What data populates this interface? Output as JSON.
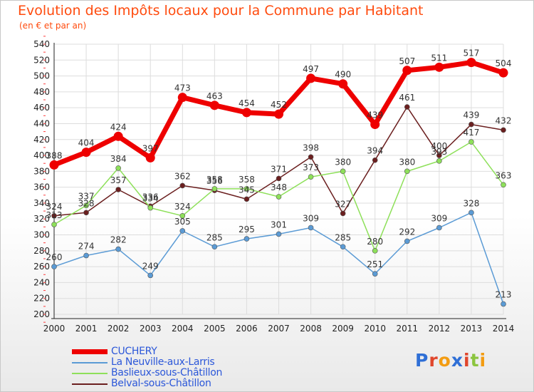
{
  "header": {
    "title": "Evolution des Impôts locaux pour la Commune par Habitant",
    "subtitle": "(en € et par an)"
  },
  "colors": {
    "title": "#ff4b0e",
    "legend_text": "#2b57d9",
    "grid": "#dddddd",
    "tick_marks": "#ff3b3b"
  },
  "chart_data": {
    "type": "line",
    "title": "Evolution des Impôts locaux pour la Commune par Habitant",
    "subtitle": "(en € et par an)",
    "x": [
      "2000",
      "2001",
      "2002",
      "2003",
      "2004",
      "2005",
      "2006",
      "2007",
      "2008",
      "2009",
      "2010",
      "2011",
      "2012",
      "2013",
      "2014"
    ],
    "yticks": [
      200,
      220,
      240,
      260,
      280,
      300,
      320,
      340,
      360,
      380,
      400,
      420,
      440,
      460,
      480,
      500,
      520,
      540
    ],
    "ylim": [
      200,
      540
    ],
    "grid": true,
    "legend_position": "bottom-left",
    "series": [
      {
        "name": "CUCHERY",
        "color": "#ee0000",
        "values": [
          388,
          404,
          424,
          397,
          473,
          463,
          454,
          452,
          497,
          490,
          439,
          507,
          511,
          517,
          504
        ],
        "labels": [
          "388",
          "404",
          "424",
          "397",
          "473",
          "463",
          "454",
          "452",
          "497",
          "490",
          "439",
          "507",
          "511",
          "517",
          "504"
        ]
      },
      {
        "name": "La Neuville-aux-Larris",
        "color": "#5b9bd5",
        "values": [
          260,
          274,
          282,
          249,
          305,
          285,
          295,
          301,
          309,
          285,
          251,
          292,
          309,
          328,
          213
        ],
        "labels": [
          "260",
          "274",
          "282",
          "249",
          "305",
          "285",
          "295",
          "301",
          "309",
          "285",
          "251",
          "292",
          "309",
          "328",
          "213"
        ]
      },
      {
        "name": "Baslieux-sous-Châtillon",
        "color": "#8ee05a",
        "values": [
          313,
          337,
          384,
          334,
          324,
          358,
          358,
          348,
          373,
          380,
          280,
          380,
          393,
          417,
          363
        ],
        "labels": [
          "313",
          "337",
          "384",
          "334",
          "324",
          "358",
          "358",
          "348",
          "373",
          "380",
          "280",
          "380",
          "393",
          "417",
          "363"
        ]
      },
      {
        "name": "Belval-sous-Châtillon",
        "color": "#6b1f1f",
        "values": [
          324,
          328,
          357,
          336,
          362,
          356,
          345,
          371,
          398,
          327,
          394,
          461,
          400,
          439,
          432
        ],
        "labels": [
          "324",
          "328",
          "357",
          "336",
          "362",
          "356",
          "345",
          "371",
          "398",
          "327",
          "394",
          "461",
          "400",
          "439",
          "432"
        ]
      }
    ]
  },
  "logo": {
    "text": "Proxiti",
    "letter_colors": [
      "#2f6fd6",
      "#e0462c",
      "#f39c12",
      "#2f6fd6",
      "#e0462c",
      "#8bc53f",
      "#f39c12"
    ]
  }
}
